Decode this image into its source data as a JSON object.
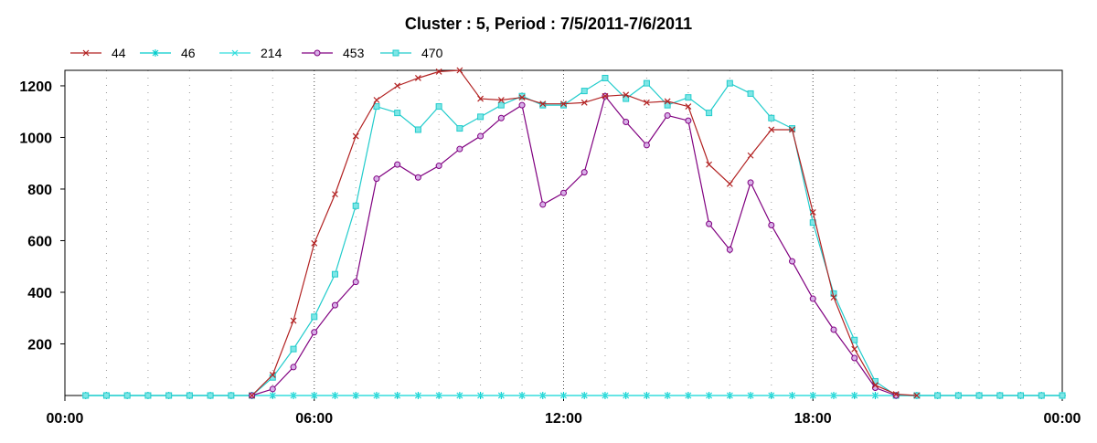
{
  "chart_data": {
    "type": "line",
    "title": "Cluster : 5, Period : 7/5/2011-7/6/2011",
    "xlabel": "",
    "ylabel": "",
    "x_ticks": [
      "00:00",
      "06:00",
      "12:00",
      "18:00",
      "00:00"
    ],
    "y_ticks": [
      200,
      400,
      600,
      800,
      1000,
      1200
    ],
    "ylim": [
      0,
      1260
    ],
    "xlim_hours": [
      0,
      24
    ],
    "grid": "dotted vertical lines",
    "legend_position": "top-left",
    "series": [
      {
        "name": "44",
        "color": "#b22222",
        "marker": "x",
        "points": [
          [
            4.5,
            0
          ],
          [
            5.0,
            80
          ],
          [
            5.5,
            290
          ],
          [
            6.0,
            590
          ],
          [
            6.5,
            780
          ],
          [
            7.0,
            1005
          ],
          [
            7.5,
            1145
          ],
          [
            8.0,
            1200
          ],
          [
            8.5,
            1230
          ],
          [
            9.0,
            1255
          ],
          [
            9.5,
            1260
          ],
          [
            10.0,
            1150
          ],
          [
            10.5,
            1145
          ],
          [
            11.0,
            1155
          ],
          [
            11.5,
            1130
          ],
          [
            12.0,
            1130
          ],
          [
            12.5,
            1135
          ],
          [
            13.0,
            1160
          ],
          [
            13.5,
            1165
          ],
          [
            14.0,
            1135
          ],
          [
            14.5,
            1140
          ],
          [
            15.0,
            1120
          ],
          [
            15.5,
            895
          ],
          [
            16.0,
            820
          ],
          [
            16.5,
            930
          ],
          [
            17.0,
            1030
          ],
          [
            17.5,
            1030
          ],
          [
            18.0,
            710
          ],
          [
            18.5,
            380
          ],
          [
            19.0,
            180
          ],
          [
            19.5,
            40
          ],
          [
            20.0,
            5
          ],
          [
            20.5,
            0
          ]
        ]
      },
      {
        "name": "46",
        "color": "#00cccc",
        "marker": "star",
        "points": [
          [
            0.5,
            0
          ],
          [
            1.0,
            0
          ],
          [
            1.5,
            0
          ],
          [
            2.0,
            0
          ],
          [
            2.5,
            0
          ],
          [
            3.0,
            0
          ],
          [
            3.5,
            0
          ],
          [
            4.0,
            0
          ],
          [
            4.5,
            0
          ],
          [
            5.0,
            0
          ],
          [
            5.5,
            0
          ],
          [
            6.0,
            0
          ],
          [
            6.5,
            0
          ],
          [
            7.0,
            0
          ],
          [
            7.5,
            0
          ],
          [
            8.0,
            0
          ],
          [
            8.5,
            0
          ],
          [
            9.0,
            0
          ],
          [
            9.5,
            0
          ],
          [
            10.0,
            0
          ],
          [
            10.5,
            0
          ],
          [
            11.0,
            0
          ],
          [
            11.5,
            0
          ],
          [
            12.0,
            0
          ],
          [
            12.5,
            0
          ],
          [
            13.0,
            0
          ],
          [
            13.5,
            0
          ],
          [
            14.0,
            0
          ],
          [
            14.5,
            0
          ],
          [
            15.0,
            0
          ],
          [
            15.5,
            0
          ],
          [
            16.0,
            0
          ],
          [
            16.5,
            0
          ],
          [
            17.0,
            0
          ],
          [
            17.5,
            0
          ],
          [
            18.0,
            0
          ],
          [
            18.5,
            0
          ],
          [
            19.0,
            0
          ],
          [
            19.5,
            0
          ],
          [
            20.0,
            0
          ],
          [
            20.5,
            0
          ],
          [
            21.0,
            0
          ],
          [
            21.5,
            0
          ],
          [
            22.0,
            0
          ],
          [
            22.5,
            0
          ],
          [
            23.0,
            0
          ],
          [
            23.5,
            0
          ],
          [
            24.0,
            0
          ]
        ]
      },
      {
        "name": "214",
        "color": "#33dddd",
        "marker": "x",
        "points": [
          [
            0.5,
            0
          ],
          [
            1.0,
            0
          ],
          [
            1.5,
            0
          ],
          [
            2.0,
            0
          ],
          [
            2.5,
            0
          ],
          [
            3.0,
            0
          ],
          [
            3.5,
            0
          ],
          [
            4.0,
            0
          ],
          [
            4.5,
            0
          ],
          [
            5.0,
            0
          ],
          [
            5.5,
            0
          ],
          [
            6.0,
            0
          ],
          [
            6.5,
            0
          ],
          [
            7.0,
            0
          ],
          [
            7.5,
            0
          ],
          [
            8.0,
            0
          ],
          [
            8.5,
            0
          ],
          [
            9.0,
            0
          ],
          [
            9.5,
            0
          ],
          [
            10.0,
            0
          ],
          [
            10.5,
            0
          ],
          [
            11.0,
            0
          ],
          [
            11.5,
            0
          ],
          [
            12.0,
            0
          ],
          [
            12.5,
            0
          ],
          [
            13.0,
            0
          ],
          [
            13.5,
            0
          ],
          [
            14.0,
            0
          ],
          [
            14.5,
            0
          ],
          [
            15.0,
            0
          ],
          [
            15.5,
            0
          ],
          [
            16.0,
            0
          ],
          [
            16.5,
            0
          ],
          [
            17.0,
            0
          ],
          [
            17.5,
            0
          ],
          [
            18.0,
            0
          ],
          [
            18.5,
            0
          ],
          [
            19.0,
            0
          ],
          [
            19.5,
            0
          ],
          [
            20.0,
            0
          ],
          [
            20.5,
            0
          ],
          [
            21.0,
            0
          ],
          [
            21.5,
            0
          ],
          [
            22.0,
            0
          ],
          [
            22.5,
            0
          ],
          [
            23.0,
            0
          ],
          [
            23.5,
            0
          ],
          [
            24.0,
            0
          ]
        ]
      },
      {
        "name": "453",
        "color": "#800080",
        "marker": "circle",
        "points": [
          [
            4.5,
            0
          ],
          [
            5.0,
            25
          ],
          [
            5.5,
            110
          ],
          [
            6.0,
            245
          ],
          [
            6.5,
            350
          ],
          [
            7.0,
            440
          ],
          [
            7.5,
            840
          ],
          [
            8.0,
            895
          ],
          [
            8.5,
            845
          ],
          [
            9.0,
            890
          ],
          [
            9.5,
            955
          ],
          [
            10.0,
            1005
          ],
          [
            10.5,
            1075
          ],
          [
            11.0,
            1125
          ],
          [
            11.5,
            740
          ],
          [
            12.0,
            785
          ],
          [
            12.5,
            865
          ],
          [
            13.0,
            1160
          ],
          [
            13.5,
            1060
          ],
          [
            14.0,
            970
          ],
          [
            14.5,
            1085
          ],
          [
            15.0,
            1065
          ],
          [
            15.5,
            665
          ],
          [
            16.0,
            565
          ],
          [
            16.5,
            825
          ],
          [
            17.0,
            660
          ],
          [
            17.5,
            520
          ],
          [
            18.0,
            375
          ],
          [
            18.5,
            255
          ],
          [
            19.0,
            145
          ],
          [
            19.5,
            30
          ],
          [
            20.0,
            0
          ]
        ]
      },
      {
        "name": "470",
        "color": "#22cccc",
        "marker": "square",
        "points": [
          [
            0.5,
            0
          ],
          [
            1.0,
            0
          ],
          [
            1.5,
            0
          ],
          [
            2.0,
            0
          ],
          [
            2.5,
            0
          ],
          [
            3.0,
            0
          ],
          [
            3.5,
            0
          ],
          [
            4.0,
            0
          ],
          [
            4.5,
            0
          ],
          [
            5.0,
            70
          ],
          [
            5.5,
            180
          ],
          [
            6.0,
            305
          ],
          [
            6.5,
            470
          ],
          [
            7.0,
            735
          ],
          [
            7.5,
            1120
          ],
          [
            8.0,
            1095
          ],
          [
            8.5,
            1030
          ],
          [
            9.0,
            1120
          ],
          [
            9.5,
            1035
          ],
          [
            10.0,
            1080
          ],
          [
            10.5,
            1125
          ],
          [
            11.0,
            1160
          ],
          [
            11.5,
            1125
          ],
          [
            12.0,
            1125
          ],
          [
            12.5,
            1180
          ],
          [
            13.0,
            1230
          ],
          [
            13.5,
            1150
          ],
          [
            14.0,
            1210
          ],
          [
            14.5,
            1125
          ],
          [
            15.0,
            1155
          ],
          [
            15.5,
            1095
          ],
          [
            16.0,
            1210
          ],
          [
            16.5,
            1170
          ],
          [
            17.0,
            1075
          ],
          [
            17.5,
            1035
          ],
          [
            18.0,
            670
          ],
          [
            18.5,
            395
          ],
          [
            19.0,
            215
          ],
          [
            19.5,
            55
          ],
          [
            20.0,
            0
          ],
          [
            20.5,
            0
          ],
          [
            21.0,
            0
          ],
          [
            21.5,
            0
          ],
          [
            22.0,
            0
          ],
          [
            22.5,
            0
          ],
          [
            23.0,
            0
          ],
          [
            23.5,
            0
          ],
          [
            24.0,
            0
          ]
        ]
      }
    ]
  }
}
